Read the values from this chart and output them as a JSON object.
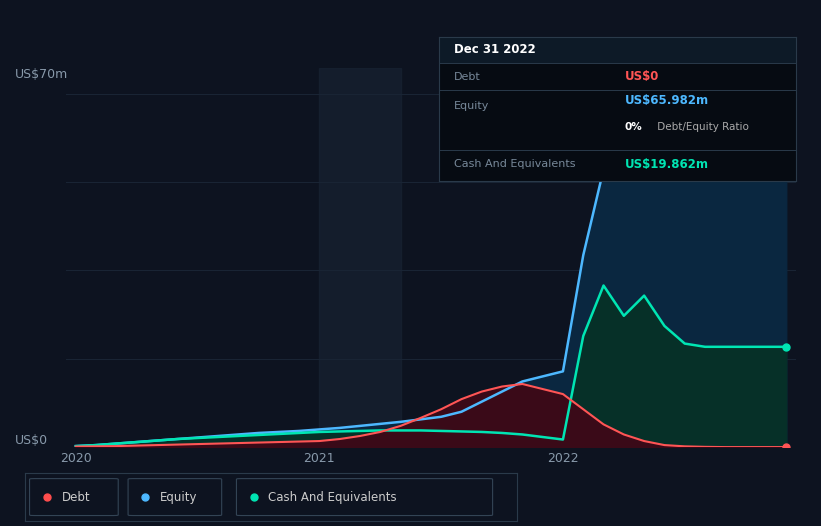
{
  "bg_color": "#0d1320",
  "plot_bg_color": "#0d1320",
  "ylabel_text": "US$70m",
  "y0_label": "US$0",
  "x_labels": [
    "2020",
    "2021",
    "2022"
  ],
  "x_tick_pos": [
    0,
    12,
    24
  ],
  "legend_items": [
    "Debt",
    "Equity",
    "Cash And Equivalents"
  ],
  "legend_colors": [
    "#ff4d4d",
    "#4db8ff",
    "#00e5b3"
  ],
  "tooltip_title": "Dec 31 2022",
  "tooltip_debt_val": "US$0",
  "tooltip_equity_val": "US$65.982m",
  "tooltip_ratio": "0%",
  "tooltip_ratio_suffix": " Debt/Equity Ratio",
  "tooltip_cash_val": "US$19.862m",
  "equity_color": "#4db8ff",
  "equity_fill_color": "#0a2740",
  "debt_color": "#ff5555",
  "debt_fill_color": "#3a0a18",
  "cash_color": "#00e5b3",
  "cash_fill_color": "#063028",
  "grid_color": "#1a2535",
  "shade_color": "#1a2535",
  "ylim": [
    0,
    75
  ],
  "y_ticks": [
    0,
    17.5,
    35,
    52.5,
    70
  ],
  "x": [
    0,
    1,
    2,
    3,
    4,
    5,
    6,
    7,
    8,
    9,
    10,
    11,
    12,
    13,
    14,
    15,
    16,
    17,
    18,
    19,
    20,
    21,
    22,
    23,
    24,
    25,
    26,
    27,
    28,
    29,
    30,
    31,
    32,
    33,
    34,
    35
  ],
  "equity": [
    0.2,
    0.4,
    0.7,
    1.0,
    1.3,
    1.6,
    1.9,
    2.2,
    2.5,
    2.8,
    3.0,
    3.2,
    3.5,
    3.8,
    4.2,
    4.6,
    5.0,
    5.5,
    6.0,
    7.0,
    9.0,
    11.0,
    13.0,
    14.0,
    15.0,
    38.0,
    55.0,
    65.982,
    65.982,
    65.982,
    65.982,
    65.982,
    65.982,
    65.982,
    65.982,
    65.982
  ],
  "debt": [
    0.1,
    0.15,
    0.2,
    0.3,
    0.4,
    0.5,
    0.6,
    0.7,
    0.8,
    0.9,
    1.0,
    1.1,
    1.2,
    1.6,
    2.2,
    3.0,
    4.2,
    5.8,
    7.5,
    9.5,
    11.0,
    12.0,
    12.5,
    11.5,
    10.5,
    7.5,
    4.5,
    2.5,
    1.2,
    0.4,
    0.15,
    0.05,
    0.0,
    0.0,
    0.0,
    0.0
  ],
  "cash": [
    0.2,
    0.4,
    0.7,
    1.0,
    1.3,
    1.6,
    1.8,
    2.0,
    2.2,
    2.4,
    2.6,
    2.8,
    3.0,
    3.1,
    3.2,
    3.3,
    3.3,
    3.3,
    3.2,
    3.1,
    3.0,
    2.8,
    2.5,
    2.0,
    1.5,
    22.0,
    32.0,
    26.0,
    30.0,
    24.0,
    20.5,
    19.862,
    19.862,
    19.862,
    19.862,
    19.862
  ],
  "shade_xmin": 12,
  "shade_xmax": 16
}
